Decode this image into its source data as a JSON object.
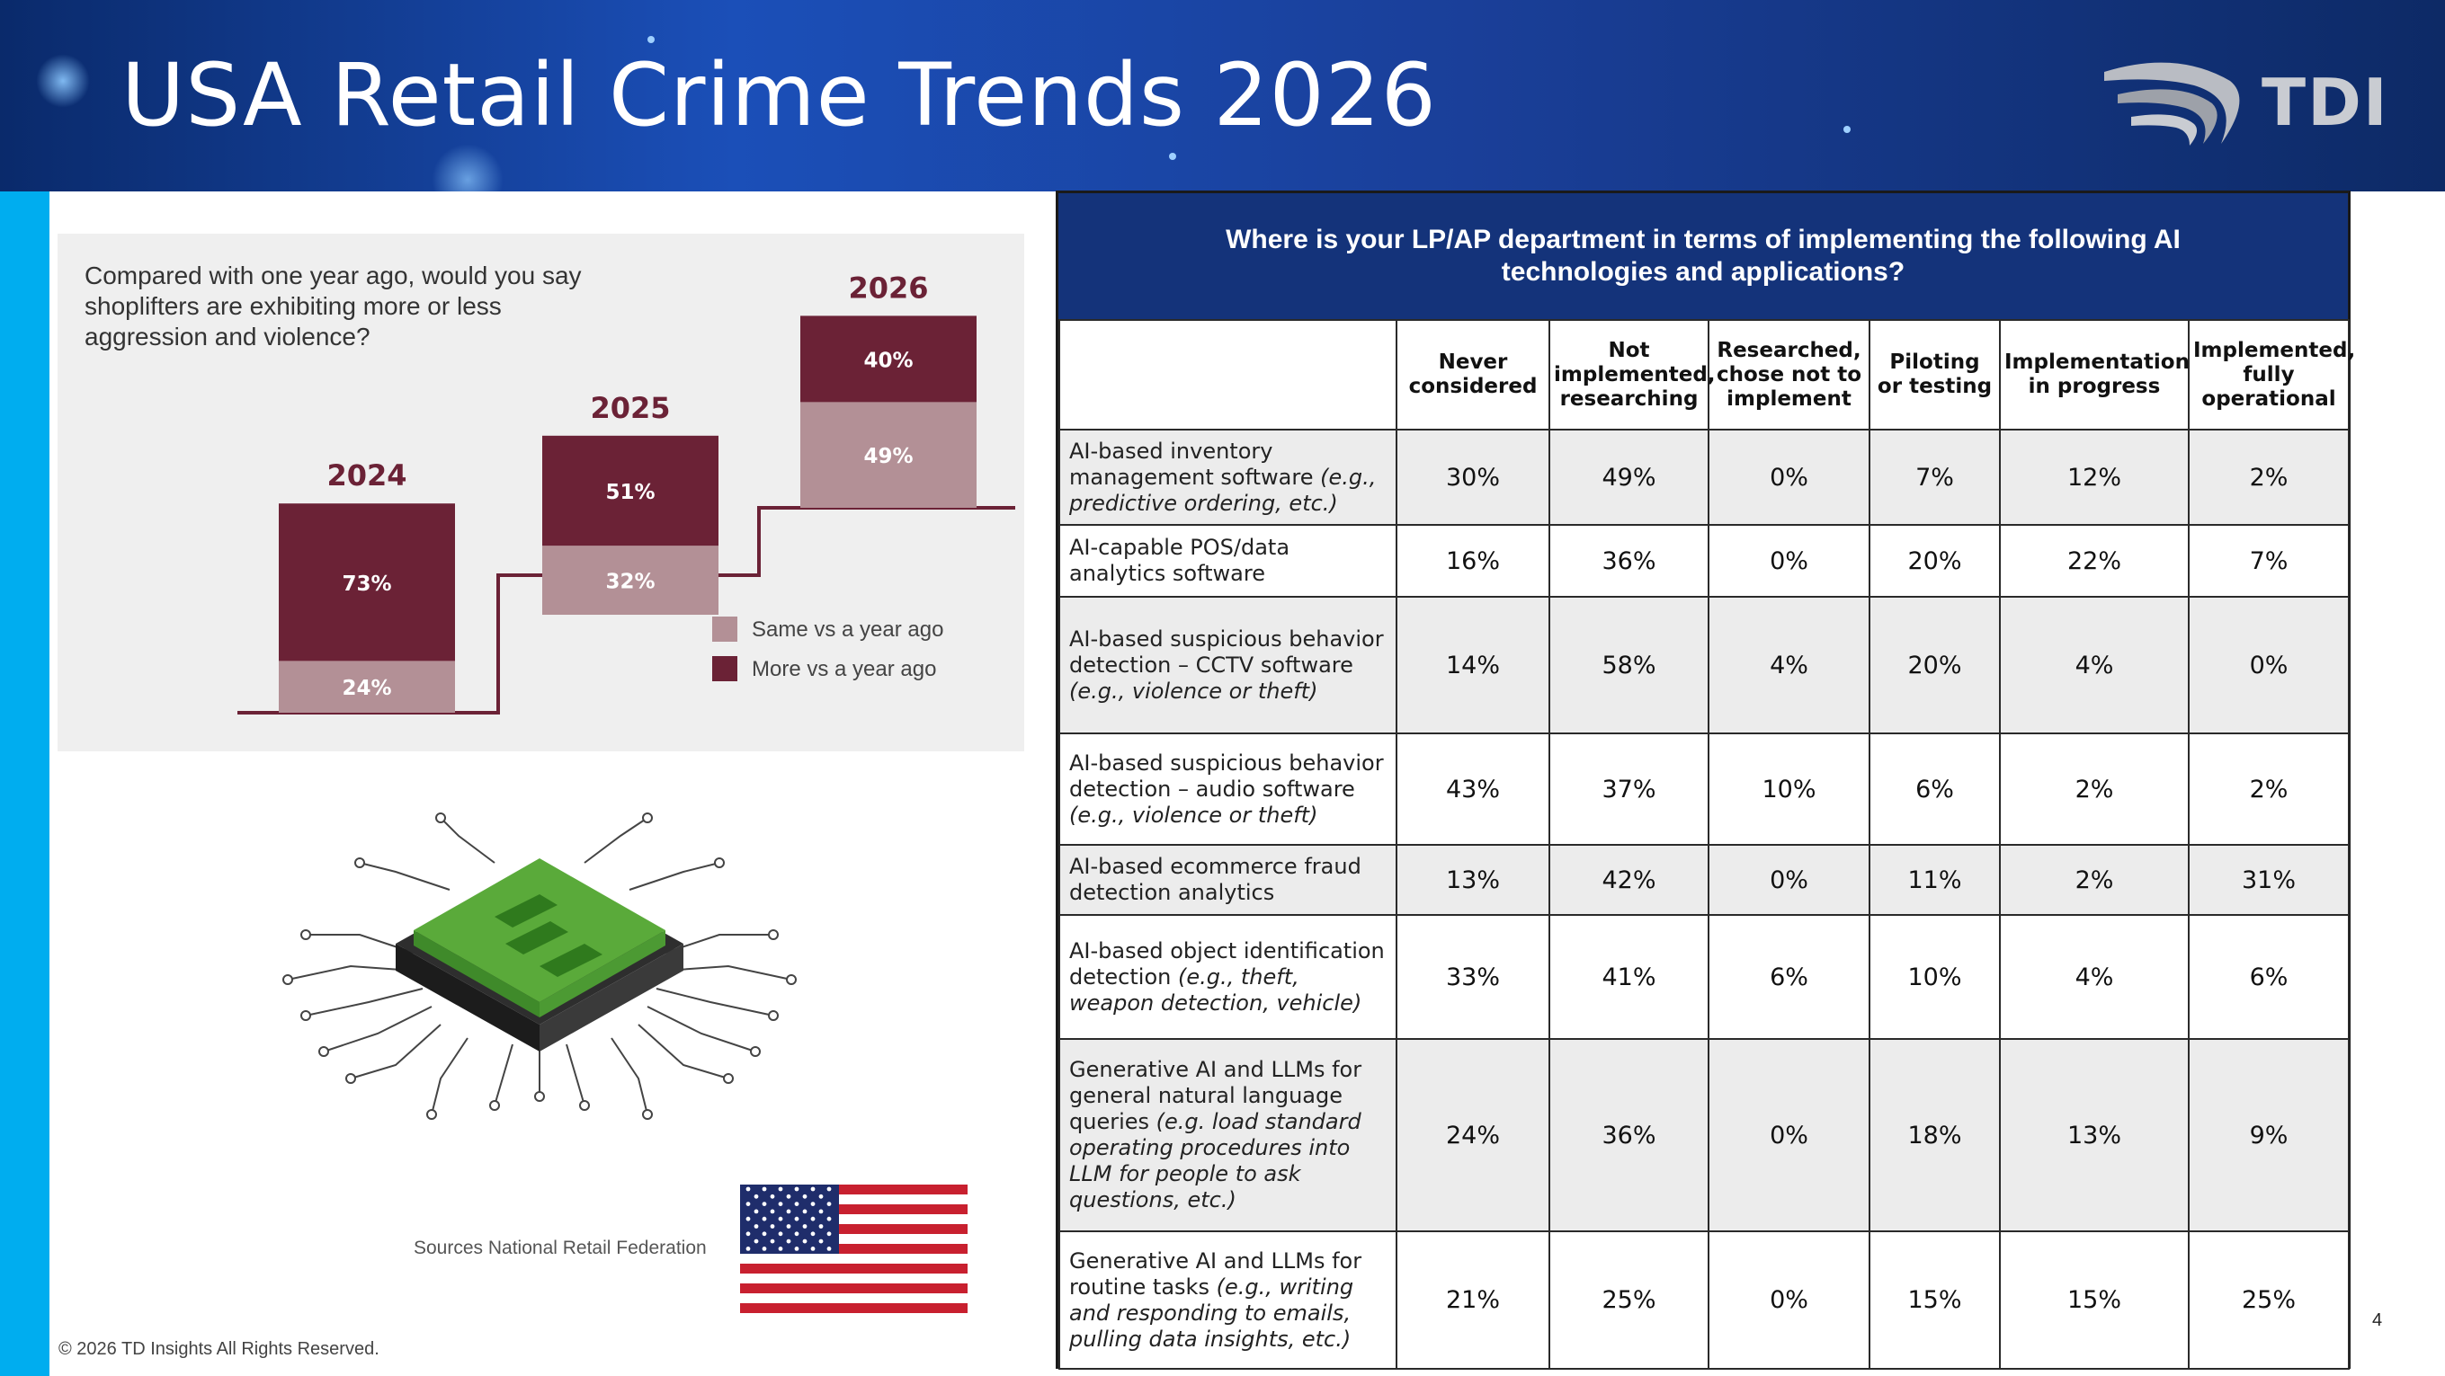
{
  "header": {
    "title": "USA Retail Crime Trends 2026",
    "logo_text": "TDI"
  },
  "survey": {
    "question": "Compared with one year ago, would you say shoplifters are exhibiting more or less aggression and violence?",
    "legend": [
      {
        "label": "Same vs a year ago",
        "color": "#b39096"
      },
      {
        "label": "More vs a year ago",
        "color": "#6b2236"
      }
    ]
  },
  "chart_data": {
    "type": "bar",
    "categories": [
      "2024",
      "2025",
      "2026"
    ],
    "series": [
      {
        "name": "More vs a year ago",
        "values": [
          73,
          51,
          40
        ],
        "color": "#6b2236"
      },
      {
        "name": "Same vs a year ago",
        "values": [
          24,
          32,
          49
        ],
        "color": "#b39096"
      }
    ],
    "labels_suffix": "%",
    "stacked": true
  },
  "table": {
    "title": "Where is your LP/AP department in terms of implementing the following AI technologies and applications?",
    "columns": [
      "Never considered",
      "Not implemented, researching",
      "Researched, chose not to implement",
      "Piloting or testing",
      "Implementation in progress",
      "Implemented, fully operational"
    ],
    "rows": [
      {
        "label": "AI-based inventory management software",
        "note": "(e.g., predictive ordering, etc.)",
        "values": [
          "30%",
          "49%",
          "0%",
          "7%",
          "12%",
          "2%"
        ]
      },
      {
        "label": "AI-capable POS/data analytics software",
        "note": "",
        "values": [
          "16%",
          "36%",
          "0%",
          "20%",
          "22%",
          "7%"
        ]
      },
      {
        "label": "AI-based suspicious behavior detection – CCTV software",
        "note": "(e.g., violence or theft)",
        "values": [
          "14%",
          "58%",
          "4%",
          "20%",
          "4%",
          "0%"
        ]
      },
      {
        "label": "AI-based suspicious behavior detection – audio software",
        "note": "(e.g., violence or theft)",
        "values": [
          "43%",
          "37%",
          "10%",
          "6%",
          "2%",
          "2%"
        ]
      },
      {
        "label": "AI-based ecommerce fraud detection analytics",
        "note": "",
        "values": [
          "13%",
          "42%",
          "0%",
          "11%",
          "2%",
          "31%"
        ]
      },
      {
        "label": "AI-based object identification detection",
        "note": "(e.g., theft, weapon detection, vehicle)",
        "values": [
          "33%",
          "41%",
          "6%",
          "10%",
          "4%",
          "6%"
        ]
      },
      {
        "label": "Generative AI and LLMs for general natural language queries",
        "note": "(e.g. load standard operating procedures into LLM for people to ask questions, etc.)",
        "values": [
          "24%",
          "36%",
          "0%",
          "18%",
          "13%",
          "9%"
        ]
      },
      {
        "label": "Generative AI and LLMs for routine tasks",
        "note": "(e.g., writing and responding to emails, pulling data insights, etc.)",
        "values": [
          "21%",
          "25%",
          "0%",
          "15%",
          "15%",
          "25%"
        ]
      }
    ]
  },
  "footer": {
    "sources": "Sources National Retail Federation",
    "copyright": "© 2026 TD Insights All Rights Reserved.",
    "page_number": "4"
  }
}
